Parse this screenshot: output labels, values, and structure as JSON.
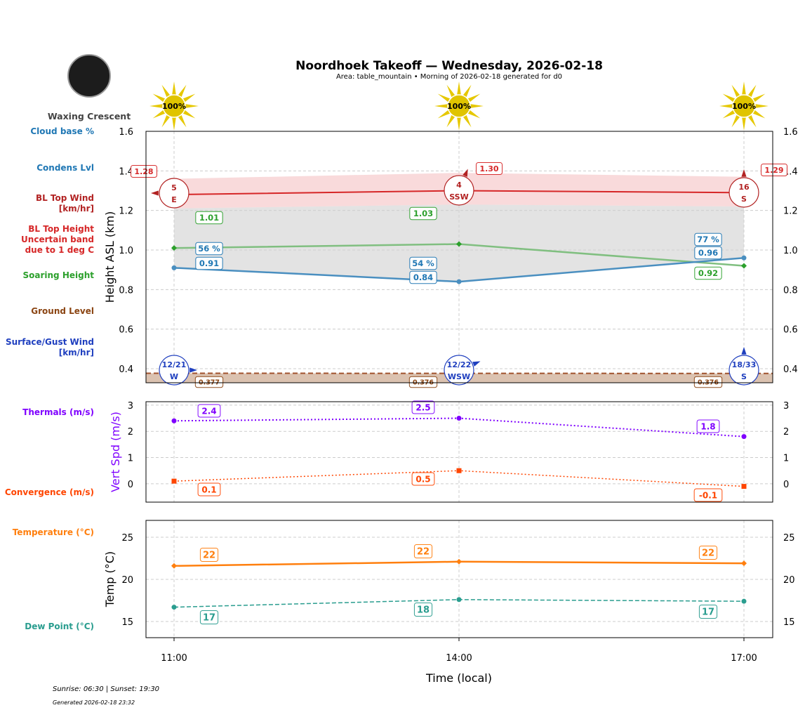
{
  "header": {
    "title": "Noordhoek Takeoff — Wednesday, 2026-02-18",
    "subtitle": "Area: table_mountain • Morning of 2026-02-18 generated for d0",
    "moon_phase": "Waxing Crescent",
    "sunrise_sunset": "Sunrise: 06:30 | Sunset: 19:30",
    "generated": "Generated 2026-02-18 23:32"
  },
  "chart_data": [
    {
      "type": "line",
      "panel": "height",
      "ylabel": "Height ASL (km)",
      "ylim": [
        0.329,
        1.6
      ],
      "yticks": [
        0.4,
        0.6,
        0.8,
        1.0,
        1.2,
        1.4,
        1.6
      ],
      "x": [
        "11:00",
        "14:00",
        "17:00"
      ],
      "sun_percent": [
        "100%",
        "100%",
        "100%"
      ],
      "grid": true,
      "series": [
        {
          "name": "BL Top Height",
          "color": "#d62728",
          "values": [
            1.28,
            1.3,
            1.29
          ],
          "labels": [
            "1.28",
            "1.30",
            "1.29"
          ]
        },
        {
          "name": "Uncertain band due to 1 deg C",
          "color": "#d62728",
          "upper": [
            1.36,
            1.39,
            1.37
          ],
          "lower": [
            1.21,
            1.23,
            1.22
          ]
        },
        {
          "name": "Soaring Height",
          "color": "#2ca02c",
          "values": [
            1.01,
            1.03,
            0.92
          ],
          "labels": [
            "1.01",
            "1.03",
            "0.92"
          ]
        },
        {
          "name": "Condens Lvl",
          "color": "#1f77b4",
          "values": [
            0.91,
            0.84,
            0.96
          ],
          "labels": [
            "0.91",
            "0.84",
            "0.96"
          ]
        },
        {
          "name": "Cloud base %",
          "color": "#1f77b4",
          "values": [
            56,
            54,
            77
          ],
          "labels": [
            "56 %",
            "54 %",
            "77 %"
          ]
        },
        {
          "name": "Ground Level",
          "color": "#8b4513",
          "values": [
            0.377,
            0.376,
            0.376
          ],
          "labels": [
            "0.377",
            "0.376",
            "0.376"
          ]
        }
      ],
      "bl_top_wind": [
        {
          "speed": "5",
          "dir": "E"
        },
        {
          "speed": "4",
          "dir": "SSW"
        },
        {
          "speed": "16",
          "dir": "S"
        }
      ],
      "surface_wind": [
        {
          "speed": "12/21",
          "dir": "W"
        },
        {
          "speed": "12/22",
          "dir": "WSW"
        },
        {
          "speed": "18/33",
          "dir": "S"
        }
      ]
    },
    {
      "type": "line",
      "panel": "vertical-speed",
      "ylabel": "Vert Spd (m/s)",
      "ylim": [
        -0.7,
        3.13
      ],
      "yticks": [
        0,
        1,
        2,
        3
      ],
      "x": [
        "11:00",
        "14:00",
        "17:00"
      ],
      "series": [
        {
          "name": "Thermals (m/s)",
          "color": "#7f00ff",
          "values": [
            2.4,
            2.5,
            1.8
          ],
          "labels": [
            "2.4",
            "2.5",
            "1.8"
          ]
        },
        {
          "name": "Convergence (m/s)",
          "color": "#ff4500",
          "values": [
            0.1,
            0.5,
            -0.1
          ],
          "labels": [
            "0.1",
            "0.5",
            "-0.1"
          ]
        }
      ]
    },
    {
      "type": "line",
      "panel": "temperature",
      "ylabel": "Temp (°C)",
      "xlabel": "Time (local)",
      "ylim": [
        13.08,
        27
      ],
      "yticks": [
        15,
        20,
        25
      ],
      "x": [
        "11:00",
        "14:00",
        "17:00"
      ],
      "series": [
        {
          "name": "Temperature (°C)",
          "color": "#ff7f0e",
          "values": [
            21.6,
            22.1,
            21.9
          ],
          "labels": [
            "22",
            "22",
            "22"
          ]
        },
        {
          "name": "Dew Point (°C)",
          "color": "#2a9d8f",
          "values": [
            16.7,
            17.6,
            17.4
          ],
          "labels": [
            "17",
            "18",
            "17"
          ]
        }
      ]
    }
  ],
  "left_labels": [
    {
      "text": "Cloud base %",
      "color": "#1f77b4"
    },
    {
      "text": "Condens Lvl",
      "color": "#1f77b4"
    },
    {
      "text": "BL Top Wind\n[km/hr]",
      "color": "#b22222"
    },
    {
      "text": "BL Top Height\nUncertain band\ndue to 1 deg C",
      "color": "#d62728"
    },
    {
      "text": "Soaring Height",
      "color": "#2ca02c"
    },
    {
      "text": "Ground Level",
      "color": "#8b4513"
    },
    {
      "text": "Surface/Gust Wind\n[km/hr]",
      "color": "#1f3fbf"
    },
    {
      "text": "Thermals (m/s)",
      "color": "#7f00ff"
    },
    {
      "text": "Convergence (m/s)",
      "color": "#ff4500"
    },
    {
      "text": "Temperature (°C)",
      "color": "#ff7f0e"
    },
    {
      "text": "Dew Point (°C)",
      "color": "#2a9d8f"
    }
  ]
}
